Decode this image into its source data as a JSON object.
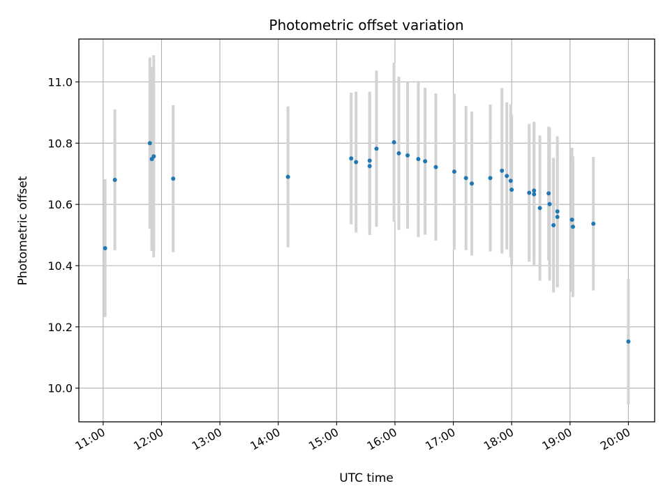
{
  "chart_data": {
    "type": "scatter",
    "title": "Photometric offset variation",
    "xlabel": "UTC time",
    "ylabel": "Photometric offset",
    "x_ticks": [
      "11:00",
      "12:00",
      "13:00",
      "14:00",
      "15:00",
      "16:00",
      "17:00",
      "18:00",
      "19:00",
      "20:00"
    ],
    "y_ticks": [
      "10.0",
      "10.2",
      "10.4",
      "10.6",
      "10.8",
      "11.0"
    ],
    "xlim": [
      "10:35",
      "20:27"
    ],
    "ylim": [
      9.89,
      11.14
    ],
    "grid": true,
    "colors": {
      "point": "#1f77b4",
      "errorbar": "#d3d3d3",
      "grid": "#b0b0b0"
    },
    "series": [
      {
        "points": [
          {
            "x": "11:02",
            "y": 10.457,
            "err": 0.225
          },
          {
            "x": "11:12",
            "y": 10.68,
            "err": 0.23
          },
          {
            "x": "11:48",
            "y": 10.8,
            "err": 0.28
          },
          {
            "x": "11:50",
            "y": 10.748,
            "err": 0.3
          },
          {
            "x": "11:52",
            "y": 10.757,
            "err": 0.33
          },
          {
            "x": "12:12",
            "y": 10.684,
            "err": 0.24
          },
          {
            "x": "14:10",
            "y": 10.69,
            "err": 0.23
          },
          {
            "x": "15:15",
            "y": 10.75,
            "err": 0.215
          },
          {
            "x": "15:20",
            "y": 10.738,
            "err": 0.23
          },
          {
            "x": "15:34",
            "y": 10.743,
            "err": 0.225
          },
          {
            "x": "15:34",
            "y": 10.725,
            "err": 0.225
          },
          {
            "x": "15:41",
            "y": 10.782,
            "err": 0.255
          },
          {
            "x": "15:59",
            "y": 10.803,
            "err": 0.26
          },
          {
            "x": "16:04",
            "y": 10.767,
            "err": 0.25
          },
          {
            "x": "16:13",
            "y": 10.76,
            "err": 0.24
          },
          {
            "x": "16:24",
            "y": 10.748,
            "err": 0.255
          },
          {
            "x": "16:31",
            "y": 10.741,
            "err": 0.24
          },
          {
            "x": "16:42",
            "y": 10.722,
            "err": 0.24
          },
          {
            "x": "17:01",
            "y": 10.707,
            "err": 0.255
          },
          {
            "x": "17:13",
            "y": 10.686,
            "err": 0.235
          },
          {
            "x": "17:19",
            "y": 10.668,
            "err": 0.235
          },
          {
            "x": "17:38",
            "y": 10.686,
            "err": 0.24
          },
          {
            "x": "17:50",
            "y": 10.71,
            "err": 0.27
          },
          {
            "x": "17:55",
            "y": 10.693,
            "err": 0.24
          },
          {
            "x": "17:59",
            "y": 10.677,
            "err": 0.25
          },
          {
            "x": "18:00",
            "y": 10.648,
            "err": 0.245
          },
          {
            "x": "18:18",
            "y": 10.638,
            "err": 0.225
          },
          {
            "x": "18:23",
            "y": 10.645,
            "err": 0.225
          },
          {
            "x": "18:23",
            "y": 10.633,
            "err": 0.235
          },
          {
            "x": "18:29",
            "y": 10.588,
            "err": 0.237
          },
          {
            "x": "18:38",
            "y": 10.636,
            "err": 0.218
          },
          {
            "x": "18:39",
            "y": 10.601,
            "err": 0.25
          },
          {
            "x": "18:43",
            "y": 10.532,
            "err": 0.22
          },
          {
            "x": "18:47",
            "y": 10.577,
            "err": 0.245
          },
          {
            "x": "18:47",
            "y": 10.559,
            "err": 0.23
          },
          {
            "x": "19:02",
            "y": 10.55,
            "err": 0.235
          },
          {
            "x": "19:03",
            "y": 10.527,
            "err": 0.23
          },
          {
            "x": "19:24",
            "y": 10.537,
            "err": 0.218
          },
          {
            "x": "20:00",
            "y": 10.152,
            "err": 0.205
          }
        ]
      }
    ]
  }
}
